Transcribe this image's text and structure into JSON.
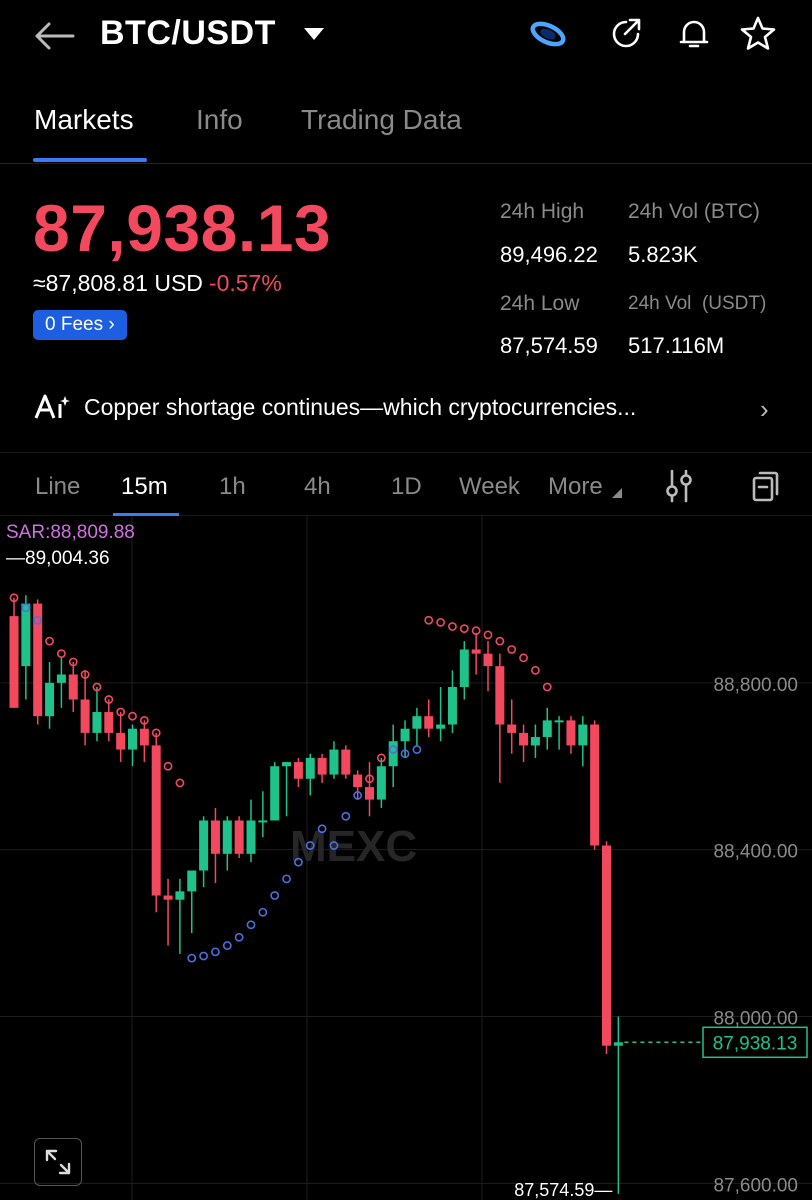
{
  "header": {
    "pair": "BTC/USDT",
    "icons": [
      "back-arrow-icon",
      "caret-down-icon",
      "mexc-brand-icon",
      "share-icon",
      "bell-icon",
      "star-icon"
    ]
  },
  "tabs": [
    {
      "label": "Markets",
      "active": true
    },
    {
      "label": "Info",
      "active": false
    },
    {
      "label": "Trading Data",
      "active": false
    }
  ],
  "ticker": {
    "last_price": "87,938.13",
    "usd_equiv": "≈87,808.81 USD",
    "change": "-0.57%",
    "fees_label": "0 Fees",
    "stats": {
      "high_label": "24h High",
      "high_value": "89,496.22",
      "vol_btc_label": "24h Vol (BTC)",
      "vol_btc_value": "5.823K",
      "low_label": "24h Low",
      "low_value": "87,574.59",
      "vol_usdt_label": "24h Vol  (USDT)",
      "vol_usdt_value": "517.116M"
    }
  },
  "news": {
    "text": "Copper shortage continues—which cryptocurrencies...",
    "icon": "ai-sparkle-icon"
  },
  "intervals": {
    "items": [
      {
        "label": "Line",
        "active": false
      },
      {
        "label": "15m",
        "active": true
      },
      {
        "label": "1h",
        "active": false
      },
      {
        "label": "4h",
        "active": false
      },
      {
        "label": "1D",
        "active": false
      },
      {
        "label": "Week",
        "active": false
      },
      {
        "label": "More",
        "active": false
      }
    ],
    "icons": [
      "indicator-settings-icon",
      "copy-layout-icon"
    ]
  },
  "chart": {
    "sar_label": "SAR:88,809.88",
    "high_marker": "89,004.36",
    "low_marker": "87,574.59",
    "last_label": "87,938.13",
    "watermark": "MEXC",
    "colors": {
      "up": "#1fc28a",
      "down": "#f2495e",
      "sar_high": "#f2495e",
      "sar_low": "#4c6fe0",
      "grid": "#1e1e1e"
    }
  },
  "chart_data": {
    "type": "candlestick",
    "interval": "15m",
    "y_ticks": [
      "88,800.00",
      "88,400.00",
      "88,000.00",
      "87,600.00"
    ],
    "y_tick_values": [
      88800,
      88400,
      88000,
      87600
    ],
    "ylim": [
      87560,
      89200
    ],
    "last_price": 87938.13,
    "candles": [
      {
        "o": 88960,
        "h": 89004,
        "l": 88740,
        "c": 88740
      },
      {
        "o": 88840,
        "h": 89010,
        "l": 88760,
        "c": 88990
      },
      {
        "o": 88990,
        "h": 89000,
        "l": 88700,
        "c": 88720
      },
      {
        "o": 88720,
        "h": 88850,
        "l": 88690,
        "c": 88800
      },
      {
        "o": 88800,
        "h": 88860,
        "l": 88740,
        "c": 88820
      },
      {
        "o": 88820,
        "h": 88850,
        "l": 88730,
        "c": 88760
      },
      {
        "o": 88760,
        "h": 88830,
        "l": 88650,
        "c": 88680
      },
      {
        "o": 88680,
        "h": 88790,
        "l": 88660,
        "c": 88730
      },
      {
        "o": 88730,
        "h": 88760,
        "l": 88660,
        "c": 88680
      },
      {
        "o": 88680,
        "h": 88730,
        "l": 88610,
        "c": 88640
      },
      {
        "o": 88640,
        "h": 88700,
        "l": 88600,
        "c": 88690
      },
      {
        "o": 88690,
        "h": 88710,
        "l": 88610,
        "c": 88650
      },
      {
        "o": 88650,
        "h": 88680,
        "l": 88250,
        "c": 88290
      },
      {
        "o": 88290,
        "h": 88330,
        "l": 88170,
        "c": 88280
      },
      {
        "o": 88280,
        "h": 88330,
        "l": 88150,
        "c": 88300
      },
      {
        "o": 88300,
        "h": 88350,
        "l": 88200,
        "c": 88350
      },
      {
        "o": 88350,
        "h": 88480,
        "l": 88310,
        "c": 88470
      },
      {
        "o": 88470,
        "h": 88500,
        "l": 88320,
        "c": 88390
      },
      {
        "o": 88390,
        "h": 88480,
        "l": 88350,
        "c": 88470
      },
      {
        "o": 88470,
        "h": 88480,
        "l": 88380,
        "c": 88390
      },
      {
        "o": 88390,
        "h": 88520,
        "l": 88370,
        "c": 88470
      },
      {
        "o": 88470,
        "h": 88540,
        "l": 88430,
        "c": 88470
      },
      {
        "o": 88470,
        "h": 88610,
        "l": 88470,
        "c": 88600
      },
      {
        "o": 88600,
        "h": 88610,
        "l": 88480,
        "c": 88610
      },
      {
        "o": 88610,
        "h": 88620,
        "l": 88550,
        "c": 88570
      },
      {
        "o": 88570,
        "h": 88630,
        "l": 88530,
        "c": 88620
      },
      {
        "o": 88620,
        "h": 88630,
        "l": 88560,
        "c": 88580
      },
      {
        "o": 88580,
        "h": 88660,
        "l": 88570,
        "c": 88640
      },
      {
        "o": 88640,
        "h": 88650,
        "l": 88570,
        "c": 88580
      },
      {
        "o": 88580,
        "h": 88590,
        "l": 88520,
        "c": 88550
      },
      {
        "o": 88550,
        "h": 88610,
        "l": 88480,
        "c": 88520
      },
      {
        "o": 88520,
        "h": 88620,
        "l": 88500,
        "c": 88600
      },
      {
        "o": 88600,
        "h": 88700,
        "l": 88550,
        "c": 88660
      },
      {
        "o": 88660,
        "h": 88710,
        "l": 88620,
        "c": 88690
      },
      {
        "o": 88690,
        "h": 88740,
        "l": 88650,
        "c": 88720
      },
      {
        "o": 88720,
        "h": 88760,
        "l": 88670,
        "c": 88690
      },
      {
        "o": 88690,
        "h": 88790,
        "l": 88660,
        "c": 88700
      },
      {
        "o": 88700,
        "h": 88830,
        "l": 88680,
        "c": 88790
      },
      {
        "o": 88790,
        "h": 88900,
        "l": 88760,
        "c": 88880
      },
      {
        "o": 88880,
        "h": 88920,
        "l": 88820,
        "c": 88870
      },
      {
        "o": 88870,
        "h": 88900,
        "l": 88780,
        "c": 88840
      },
      {
        "o": 88840,
        "h": 88870,
        "l": 88560,
        "c": 88700
      },
      {
        "o": 88700,
        "h": 88760,
        "l": 88630,
        "c": 88680
      },
      {
        "o": 88680,
        "h": 88700,
        "l": 88610,
        "c": 88650
      },
      {
        "o": 88650,
        "h": 88700,
        "l": 88620,
        "c": 88670
      },
      {
        "o": 88670,
        "h": 88740,
        "l": 88640,
        "c": 88710
      },
      {
        "o": 88710,
        "h": 88720,
        "l": 88640,
        "c": 88710
      },
      {
        "o": 88710,
        "h": 88720,
        "l": 88630,
        "c": 88650
      },
      {
        "o": 88650,
        "h": 88720,
        "l": 88600,
        "c": 88700
      },
      {
        "o": 88700,
        "h": 88710,
        "l": 88400,
        "c": 88410
      },
      {
        "o": 88410,
        "h": 88420,
        "l": 87910,
        "c": 87930
      },
      {
        "o": 87930,
        "h": 88000,
        "l": 87574.59,
        "c": 87938.13
      }
    ],
    "sar": [
      {
        "i": 0,
        "v": 89004
      },
      {
        "i": 1,
        "v": 88980
      },
      {
        "i": 2,
        "v": 88950
      },
      {
        "i": 3,
        "v": 88900
      },
      {
        "i": 4,
        "v": 88870
      },
      {
        "i": 5,
        "v": 88850
      },
      {
        "i": 6,
        "v": 88820
      },
      {
        "i": 7,
        "v": 88790
      },
      {
        "i": 8,
        "v": 88760
      },
      {
        "i": 9,
        "v": 88730
      },
      {
        "i": 10,
        "v": 88720
      },
      {
        "i": 11,
        "v": 88710
      },
      {
        "i": 12,
        "v": 88680
      },
      {
        "i": 13,
        "v": 88600
      },
      {
        "i": 14,
        "v": 88560
      },
      {
        "i": 15,
        "v": 88140
      },
      {
        "i": 16,
        "v": 88145
      },
      {
        "i": 17,
        "v": 88155
      },
      {
        "i": 18,
        "v": 88170
      },
      {
        "i": 19,
        "v": 88190
      },
      {
        "i": 20,
        "v": 88220
      },
      {
        "i": 21,
        "v": 88250
      },
      {
        "i": 22,
        "v": 88290
      },
      {
        "i": 23,
        "v": 88330
      },
      {
        "i": 24,
        "v": 88370
      },
      {
        "i": 25,
        "v": 88410
      },
      {
        "i": 26,
        "v": 88450
      },
      {
        "i": 27,
        "v": 88410
      },
      {
        "i": 28,
        "v": 88480
      },
      {
        "i": 29,
        "v": 88530
      },
      {
        "i": 30,
        "v": 88570
      },
      {
        "i": 31,
        "v": 88620
      },
      {
        "i": 32,
        "v": 88640
      },
      {
        "i": 33,
        "v": 88630
      },
      {
        "i": 34,
        "v": 88640
      },
      {
        "i": 35,
        "v": 88950
      },
      {
        "i": 36,
        "v": 88945
      },
      {
        "i": 37,
        "v": 88935
      },
      {
        "i": 38,
        "v": 88930
      },
      {
        "i": 39,
        "v": 88925
      },
      {
        "i": 40,
        "v": 88915
      },
      {
        "i": 41,
        "v": 88900
      },
      {
        "i": 42,
        "v": 88880
      },
      {
        "i": 43,
        "v": 88860
      },
      {
        "i": 44,
        "v": 88830
      },
      {
        "i": 45,
        "v": 88790
      }
    ]
  }
}
